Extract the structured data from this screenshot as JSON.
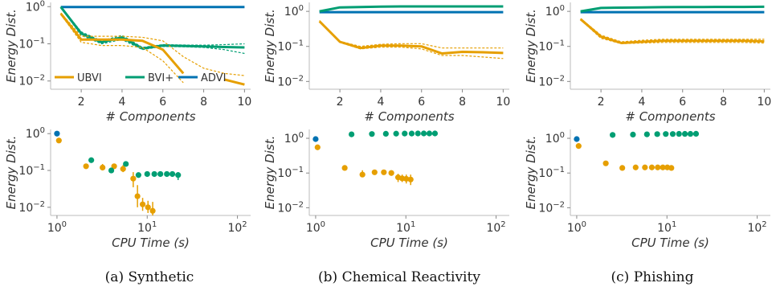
{
  "colors": {
    "UBVI": "#E69F00",
    "BVI+": "#009E73",
    "ADVI": "#0072B2"
  },
  "panels": [
    {
      "caption": "(a) Synthetic",
      "legend_position": "lower-left"
    },
    {
      "caption": "(b) Chemical Reactivity",
      "legend_position": "none"
    },
    {
      "caption": "(c) Phishing",
      "legend_position": "none"
    }
  ],
  "chart_data": [
    {
      "type": "line",
      "panel": 0,
      "row": "top",
      "xlabel": "# Components",
      "ylabel": "Energy Dist.",
      "yscale": "log",
      "xlim": [
        0.5,
        10.3
      ],
      "ylim": [
        0.006,
        1.3
      ],
      "xticks": [
        "2",
        "4",
        "6",
        "8",
        "10"
      ],
      "yticks": [
        "10^0",
        "10^-1",
        "10^-2"
      ],
      "x": [
        1,
        2,
        3,
        4,
        5,
        6,
        7,
        8,
        9,
        10
      ],
      "series": [
        {
          "name": "UBVI",
          "values": [
            0.65,
            0.13,
            0.13,
            0.13,
            0.12,
            0.07,
            0.016,
            null,
            0.011,
            0.008
          ],
          "lower": [
            0.62,
            0.11,
            0.09,
            0.09,
            0.08,
            0.035,
            0.009,
            null,
            null,
            null
          ],
          "upper": [
            0.68,
            0.16,
            0.16,
            0.16,
            0.15,
            0.12,
            0.045,
            0.022,
            0.016,
            0.014
          ]
        },
        {
          "name": "BVI+",
          "values": [
            0.98,
            0.19,
            0.11,
            0.15,
            0.075,
            0.09,
            0.088,
            0.085,
            0.082,
            0.08
          ],
          "lower": [
            0.96,
            0.17,
            0.1,
            0.13,
            0.07,
            0.085,
            0.083,
            0.08,
            0.07,
            0.055
          ],
          "upper": [
            1.0,
            0.21,
            0.12,
            0.17,
            0.08,
            0.095,
            0.093,
            0.092,
            0.095,
            0.1
          ]
        },
        {
          "name": "ADVI",
          "values": [
            0.98,
            0.98,
            0.98,
            0.98,
            0.98,
            0.98,
            0.98,
            0.98,
            0.98,
            0.98
          ]
        }
      ]
    },
    {
      "type": "line",
      "panel": 1,
      "row": "top",
      "xlabel": "# Components",
      "ylabel": "Energy Dist.",
      "yscale": "log",
      "xlim": [
        0.5,
        10.3
      ],
      "ylim": [
        0.006,
        1.8
      ],
      "xticks": [
        "2",
        "4",
        "6",
        "8",
        "10"
      ],
      "yticks": [
        "10^0",
        "10^-1",
        "10^-2"
      ],
      "x": [
        1,
        2,
        3,
        4,
        5,
        6,
        7,
        8,
        9,
        10
      ],
      "series": [
        {
          "name": "UBVI",
          "values": [
            0.52,
            0.135,
            0.09,
            0.105,
            0.105,
            0.1,
            0.063,
            0.07,
            0.068,
            0.065
          ],
          "lower": [
            0.5,
            0.13,
            0.085,
            0.095,
            0.095,
            0.085,
            0.055,
            0.055,
            0.05,
            0.045
          ],
          "upper": [
            0.55,
            0.14,
            0.1,
            0.115,
            0.12,
            0.12,
            0.09,
            0.09,
            0.09,
            0.09
          ]
        },
        {
          "name": "BVI+",
          "values": [
            1.0,
            1.3,
            1.33,
            1.36,
            1.38,
            1.38,
            1.38,
            1.38,
            1.38,
            1.38
          ]
        },
        {
          "name": "ADVI",
          "values": [
            0.95,
            0.95,
            0.95,
            0.95,
            0.95,
            0.95,
            0.95,
            0.95,
            0.95,
            0.95
          ]
        }
      ]
    },
    {
      "type": "line",
      "panel": 2,
      "row": "top",
      "xlabel": "# Components",
      "ylabel": "Energy Dist.",
      "yscale": "log",
      "xlim": [
        0.5,
        10.3
      ],
      "ylim": [
        0.006,
        1.8
      ],
      "xticks": [
        "2",
        "4",
        "6",
        "8",
        "10"
      ],
      "yticks": [
        "10^0",
        "10^-1",
        "10^-2"
      ],
      "x": [
        1,
        2,
        3,
        4,
        5,
        6,
        7,
        8,
        9,
        10
      ],
      "series": [
        {
          "name": "UBVI",
          "values": [
            0.6,
            0.19,
            0.125,
            0.135,
            0.145,
            0.145,
            0.145,
            0.145,
            0.145,
            0.14
          ],
          "lower": [
            0.58,
            0.17,
            0.12,
            0.125,
            0.13,
            0.13,
            0.13,
            0.13,
            0.13,
            0.125
          ],
          "upper": [
            0.62,
            0.21,
            0.135,
            0.15,
            0.16,
            0.16,
            0.16,
            0.16,
            0.16,
            0.16
          ]
        },
        {
          "name": "BVI+",
          "values": [
            1.0,
            1.25,
            1.28,
            1.3,
            1.32,
            1.33,
            1.33,
            1.34,
            1.34,
            1.35
          ]
        },
        {
          "name": "ADVI",
          "values": [
            0.95,
            0.95,
            0.95,
            0.95,
            0.95,
            0.95,
            0.95,
            0.95,
            0.95,
            0.95
          ]
        }
      ]
    },
    {
      "type": "scatter",
      "panel": 0,
      "row": "bottom",
      "xlabel": "CPU Time (s)",
      "ylabel": "Energy Dist.",
      "xscale": "log",
      "yscale": "log",
      "xlim": [
        0.85,
        140
      ],
      "ylim": [
        0.006,
        1.3
      ],
      "xticks": [
        "10^0",
        "10^1",
        "10^2"
      ],
      "yticks": [
        "10^0",
        "10^-1",
        "10^-2"
      ],
      "series": [
        {
          "name": "ADVI",
          "x": [
            1.0
          ],
          "y": [
            1.0
          ]
        },
        {
          "name": "UBVI",
          "x": [
            1.05,
            2.1,
            3.2,
            4.3,
            5.4,
            7.0,
            7.8,
            8.9,
            10.2,
            11.5
          ],
          "y": [
            0.65,
            0.13,
            0.12,
            0.13,
            0.11,
            0.06,
            0.02,
            0.012,
            0.01,
            0.008
          ],
          "lower": [
            0.62,
            0.11,
            0.1,
            0.11,
            0.09,
            0.035,
            0.01,
            0.008,
            0.007,
            0.006
          ],
          "upper": [
            0.68,
            0.15,
            0.15,
            0.15,
            0.14,
            0.09,
            0.04,
            0.018,
            0.015,
            0.014
          ]
        },
        {
          "name": "BVI+",
          "x": [
            2.4,
            4.0,
            5.8,
            8.0,
            10.0,
            12.0,
            14.0,
            16.5,
            19.0,
            22.0
          ],
          "y": [
            0.19,
            0.1,
            0.15,
            0.075,
            0.08,
            0.08,
            0.08,
            0.08,
            0.08,
            0.075
          ],
          "lower": [
            null,
            null,
            null,
            null,
            null,
            null,
            null,
            null,
            null,
            0.055
          ],
          "upper": [
            null,
            null,
            null,
            null,
            null,
            null,
            null,
            null,
            null,
            0.09
          ]
        }
      ]
    },
    {
      "type": "scatter",
      "panel": 1,
      "row": "bottom",
      "xlabel": "CPU Time (s)",
      "ylabel": "Energy Dist.",
      "xscale": "log",
      "yscale": "log",
      "xlim": [
        0.85,
        140
      ],
      "ylim": [
        0.006,
        1.8
      ],
      "xticks": [
        "10^0",
        "10^1",
        "10^2"
      ],
      "yticks": [
        "10^0",
        "10^-1",
        "10^-2"
      ],
      "series": [
        {
          "name": "ADVI",
          "x": [
            1.0
          ],
          "y": [
            0.95
          ]
        },
        {
          "name": "UBVI",
          "x": [
            1.05,
            2.1,
            3.3,
            4.5,
            5.7,
            6.9,
            8.2,
            9.1,
            10.1,
            11.3
          ],
          "y": [
            0.55,
            0.14,
            0.09,
            0.105,
            0.105,
            0.1,
            0.075,
            0.07,
            0.068,
            0.065
          ],
          "lower": [
            null,
            null,
            0.085,
            null,
            null,
            0.085,
            0.055,
            0.055,
            0.05,
            0.045
          ],
          "upper": [
            null,
            null,
            0.12,
            null,
            null,
            0.12,
            0.095,
            0.09,
            0.09,
            0.09
          ]
        },
        {
          "name": "BVI+",
          "x": [
            2.5,
            4.2,
            6.0,
            7.8,
            9.7,
            11.6,
            13.6,
            15.8,
            18.2,
            21.0
          ],
          "y": [
            1.3,
            1.33,
            1.35,
            1.36,
            1.37,
            1.37,
            1.38,
            1.38,
            1.38,
            1.38
          ]
        }
      ]
    },
    {
      "type": "scatter",
      "panel": 2,
      "row": "bottom",
      "xlabel": "CPU Time (s)",
      "ylabel": "Energy Dist.",
      "xscale": "log",
      "yscale": "log",
      "xlim": [
        0.85,
        140
      ],
      "ylim": [
        0.006,
        1.8
      ],
      "xticks": [
        "10^0",
        "10^1",
        "10^2"
      ],
      "yticks": [
        "10^0",
        "10^-1",
        "10^-2"
      ],
      "series": [
        {
          "name": "ADVI",
          "x": [
            1.0
          ],
          "y": [
            0.95
          ]
        },
        {
          "name": "UBVI",
          "x": [
            1.05,
            2.1,
            3.2,
            4.5,
            5.7,
            6.8,
            7.9,
            9.0,
            10.1,
            11.2
          ],
          "y": [
            0.6,
            0.19,
            0.14,
            0.145,
            0.145,
            0.145,
            0.145,
            0.145,
            0.145,
            0.14
          ]
        },
        {
          "name": "BVI+",
          "x": [
            2.5,
            4.2,
            6.0,
            7.8,
            9.7,
            11.6,
            13.6,
            15.8,
            18.2,
            21.0
          ],
          "y": [
            1.25,
            1.28,
            1.3,
            1.32,
            1.33,
            1.33,
            1.34,
            1.34,
            1.34,
            1.35
          ]
        }
      ]
    }
  ]
}
